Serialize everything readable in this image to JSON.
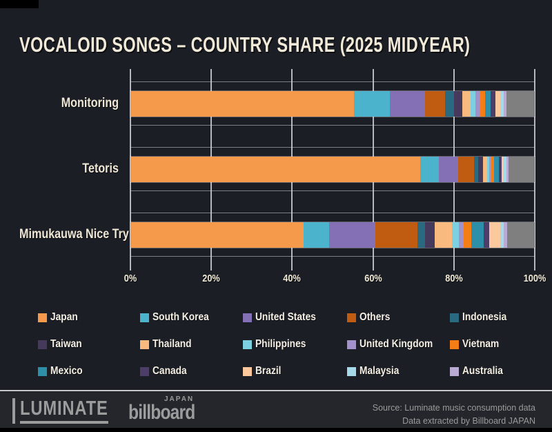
{
  "chart_data": {
    "type": "bar",
    "orientation": "horizontal",
    "stacked": true,
    "unit": "%",
    "title": "VOCALOID SONGS – COUNTRY SHARE (2025 MIDYEAR)",
    "categories": [
      "Monitoring",
      "Tetoris",
      "Mimukauwa Nice Try"
    ],
    "x_ticks": [
      "0%",
      "20%",
      "40%",
      "60%",
      "80%",
      "100%"
    ],
    "xlim": [
      0,
      100
    ],
    "grid": "vertical",
    "legend_position": "bottom",
    "series": [
      {
        "name": "Japan",
        "color": "#F5994B",
        "in_legend": true,
        "values": [
          55.3,
          71.7,
          42.9
        ]
      },
      {
        "name": "South Korea",
        "color": "#4BB3CC",
        "in_legend": true,
        "values": [
          8.9,
          4.6,
          6.2
        ]
      },
      {
        "name": "United States",
        "color": "#8470B4",
        "in_legend": true,
        "values": [
          8.7,
          4.8,
          11.4
        ]
      },
      {
        "name": "Others",
        "color": "#C05C12",
        "in_legend": true,
        "values": [
          4.9,
          3.9,
          10.5
        ]
      },
      {
        "name": "Indonesia",
        "color": "#2A6A80",
        "in_legend": true,
        "values": [
          2.2,
          1.0,
          1.9
        ]
      },
      {
        "name": "Taiwan",
        "color": "#453A5C",
        "in_legend": true,
        "values": [
          2.1,
          1.2,
          2.3
        ]
      },
      {
        "name": "Thailand",
        "color": "#F9BA80",
        "in_legend": true,
        "values": [
          2.0,
          1.1,
          4.4
        ]
      },
      {
        "name": "Philippines",
        "color": "#7DD0DF",
        "in_legend": true,
        "values": [
          1.3,
          0.5,
          1.6
        ]
      },
      {
        "name": "United Kingdom",
        "color": "#A291CB",
        "in_legend": true,
        "values": [
          1.1,
          0.5,
          1.3
        ]
      },
      {
        "name": "Vietnam",
        "color": "#F57D16",
        "in_legend": true,
        "values": [
          1.3,
          0.7,
          1.8
        ]
      },
      {
        "name": "Mexico",
        "color": "#2E8FA8",
        "in_legend": true,
        "values": [
          1.3,
          1.2,
          3.1
        ]
      },
      {
        "name": "Canada",
        "color": "#4C3E68",
        "in_legend": true,
        "values": [
          1.2,
          0.6,
          1.3
        ]
      },
      {
        "name": "Brazil",
        "color": "#FBC99D",
        "in_legend": true,
        "values": [
          1.2,
          0.6,
          2.8
        ]
      },
      {
        "name": "Malaysia",
        "color": "#A6DAE8",
        "in_legend": true,
        "values": [
          0.8,
          0.6,
          0.9
        ]
      },
      {
        "name": "Australia",
        "color": "#B9A9D5",
        "in_legend": true,
        "values": [
          0.7,
          0.6,
          0.8
        ]
      },
      {
        "name": "Rest (unlabeled grey segment)",
        "color": "#7F7F7F",
        "in_legend": false,
        "values": [
          7.0,
          6.4,
          6.8
        ]
      }
    ]
  },
  "footer": {
    "luminate_logo_text": "LUMINATE",
    "billboard_logo_text": "billboard",
    "billboard_logo_superscript": "JAPAN",
    "source_line1": "Source: Luminate music consumption data",
    "source_line2": "Data extracted by Billboard JAPAN"
  },
  "colors": {
    "background": "#1C1E25",
    "footer_background": "#24262C",
    "title_text": "#F2EAD8",
    "axis_text": "#EFE8D5",
    "gridline": "#D2D4DA",
    "logo_grey": "#9C9C9C",
    "source_text": "#9A9A9A"
  }
}
